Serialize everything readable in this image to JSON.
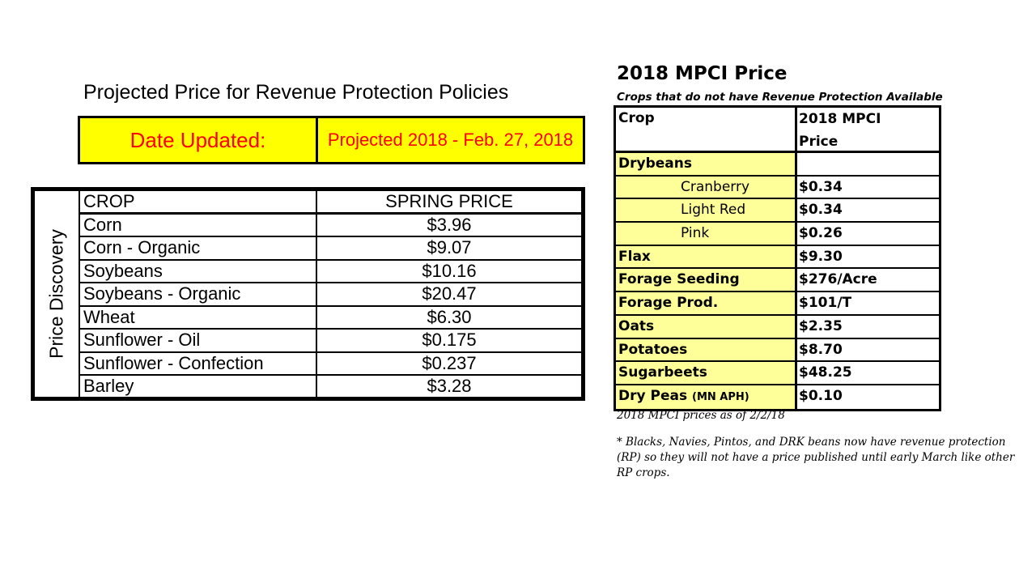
{
  "left": {
    "title": "Projected Price for Revenue Protection Policies",
    "date_label": "Date Updated:",
    "date_value": "Projected 2018 - Feb. 27, 2018",
    "side_label": "Price Discovery",
    "header": {
      "crop": "CROP",
      "price": "SPRING PRICE"
    },
    "rows": [
      {
        "crop": "Corn",
        "price": "$3.96"
      },
      {
        "crop": "Corn - Organic",
        "price": "$9.07"
      },
      {
        "crop": "Soybeans",
        "price": "$10.16"
      },
      {
        "crop": "Soybeans - Organic",
        "price": "$20.47"
      },
      {
        "crop": "Wheat",
        "price": "$6.30"
      },
      {
        "crop": "Sunflower - Oil",
        "price": "$0.175"
      },
      {
        "crop": "Sunflower - Confection",
        "price": "$0.237"
      },
      {
        "crop": "Barley",
        "price": "$3.28"
      }
    ]
  },
  "right": {
    "title": "2018 MPCI Price",
    "subtitle": "Crops that do not have Revenue Protection Available",
    "header": {
      "crop": "Crop",
      "price_line1": "2018 MPCI",
      "price_line2": "Price"
    },
    "rows": [
      {
        "crop": "Drybeans",
        "price": ""
      },
      {
        "crop": "Cranberry",
        "price": "$0.34"
      },
      {
        "crop": "Light Red",
        "price": "$0.34"
      },
      {
        "crop": "Pink",
        "price": "$0.26"
      },
      {
        "crop": "Flax",
        "price": "$9.30"
      },
      {
        "crop": "Forage Seeding",
        "price": "$276/Acre"
      },
      {
        "crop": "Forage Prod.",
        "price": "$101/T"
      },
      {
        "crop": "Oats",
        "price": "$2.35"
      },
      {
        "crop": "Potatoes",
        "price": "$8.70"
      },
      {
        "crop": "Sugarbeets",
        "price": "$48.25"
      },
      {
        "crop": "Dry Peas",
        "crop_note": "(MN APH)",
        "price": "$0.10"
      }
    ],
    "as_of": "2018 MPCI prices as of 2/2/18",
    "footnote": "* Blacks, Navies, Pintos, and DRK beans now have revenue protection (RP) so they will not have a price published until early March like other RP crops."
  },
  "colors": {
    "highlight_yellow": "#ffff00",
    "light_yellow": "#ffff99",
    "date_text_red": "#ff0000"
  }
}
